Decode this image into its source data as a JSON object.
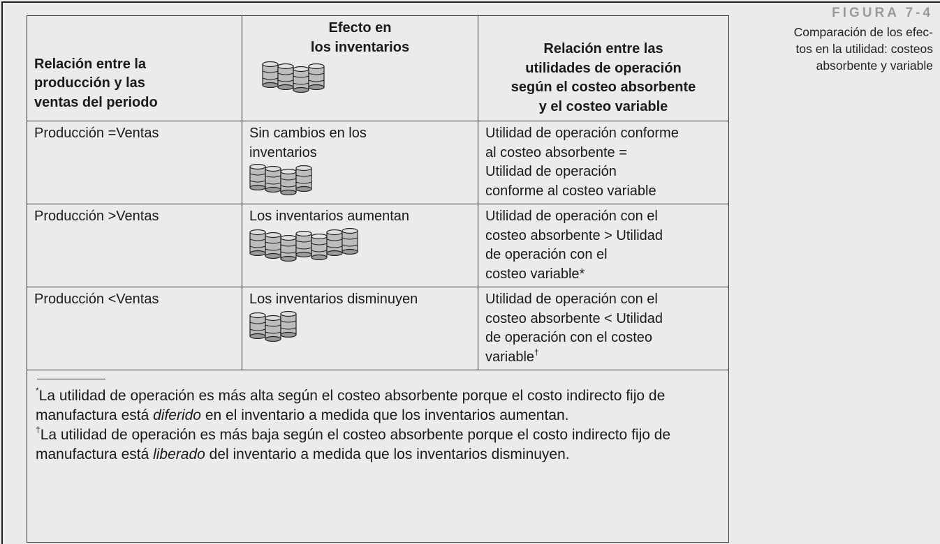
{
  "figure": {
    "label": "FIGURA 7-4",
    "caption_lines": [
      "Comparación de los efec-",
      "tos en la utilidad: costeos",
      "absorbente y variable"
    ]
  },
  "table": {
    "header": [
      [
        "Relación entre la",
        "producción y las",
        "ventas del periodo"
      ],
      [
        "Efecto en",
        "los inventarios"
      ],
      [
        "Relación entre las",
        "utilidades de operación",
        "según el costeo absorbente",
        "y el costeo variable"
      ]
    ],
    "rows": [
      {
        "cells": [
          [
            "Producción =Ventas"
          ],
          [
            "Sin cambios en los",
            "inventarios"
          ],
          [
            "Utilidad de operación conforme",
            "al costeo absorbente =",
            "Utilidad de operación",
            "conforme al costeo variable"
          ]
        ]
      },
      {
        "cells": [
          [
            "Producción >Ventas"
          ],
          [
            "Los inventarios aumentan"
          ],
          [
            "Utilidad de operación con el",
            "costeo absorbente > Utilidad",
            "de operación con el",
            "costeo variable*"
          ]
        ]
      },
      {
        "cells": [
          [
            "Producción <Ventas"
          ],
          [
            "Los inventarios disminuyen"
          ],
          [
            "Utilidad de operación con el",
            "costeo absorbente < Utilidad",
            "de operación con el costeo",
            "variable"
          ]
        ],
        "note_marker": "†"
      }
    ]
  },
  "footnotes": [
    {
      "marker": "*",
      "before": "La utilidad de operación es más alta según el costeo absorbente porque el costo indirecto fijo de manufactura está ",
      "emphasis": "diferido",
      "after": " en el inventario a medida que los inventarios aumentan."
    },
    {
      "marker": "†",
      "before": "La utilidad de operación es más baja según el costeo absorbente porque el costo indirecto fijo de manufactura está ",
      "emphasis": "liberado",
      "after": " del inventario a medida que los inventarios disminuyen."
    }
  ]
}
